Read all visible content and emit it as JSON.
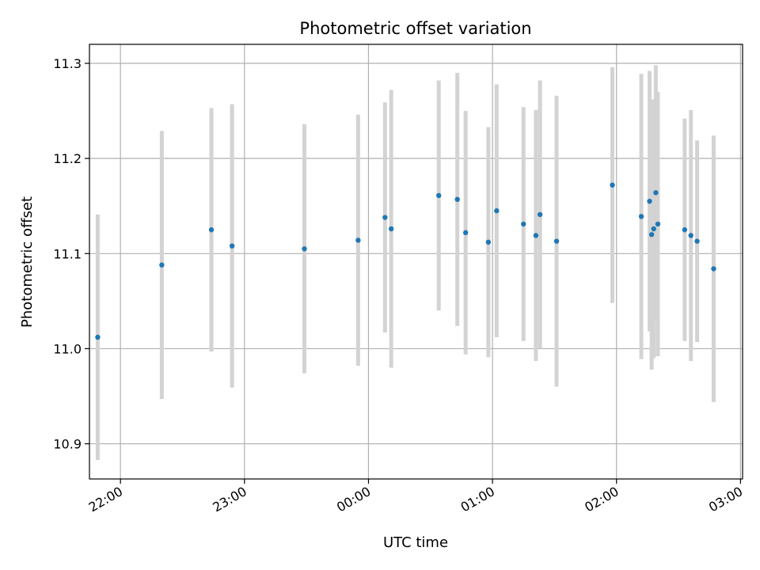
{
  "chart_data": {
    "type": "scatter",
    "title": "Photometric offset variation",
    "xlabel": "UTC time",
    "ylabel": "Photometric offset",
    "x_ticks": [
      "22:00",
      "23:00",
      "00:00",
      "01:00",
      "02:00",
      "03:00"
    ],
    "y_ticks": [
      "10.9",
      "11.0",
      "11.1",
      "11.2",
      "11.3"
    ],
    "xlim": [
      "21:45",
      "03:01"
    ],
    "ylim": [
      10.863,
      11.32
    ],
    "grid": true,
    "colors": {
      "point": "#1f77b4",
      "errorbar": "#d3d3d3",
      "grid": "#b0b0b0"
    },
    "series": [
      {
        "points": [
          {
            "x": "21:49",
            "y": 11.012,
            "yerr": 0.129
          },
          {
            "x": "22:20",
            "y": 11.088,
            "yerr": 0.141
          },
          {
            "x": "22:44",
            "y": 11.125,
            "yerr": 0.128
          },
          {
            "x": "22:54",
            "y": 11.108,
            "yerr": 0.149
          },
          {
            "x": "23:29",
            "y": 11.105,
            "yerr": 0.131
          },
          {
            "x": "23:55",
            "y": 11.114,
            "yerr": 0.132
          },
          {
            "x": "00:08",
            "y": 11.138,
            "yerr": 0.121
          },
          {
            "x": "00:11",
            "y": 11.126,
            "yerr": 0.146
          },
          {
            "x": "00:34",
            "y": 11.161,
            "yerr": 0.121
          },
          {
            "x": "00:43",
            "y": 11.157,
            "yerr": 0.133
          },
          {
            "x": "00:47",
            "y": 11.122,
            "yerr": 0.128
          },
          {
            "x": "00:58",
            "y": 11.112,
            "yerr": 0.121
          },
          {
            "x": "01:02",
            "y": 11.145,
            "yerr": 0.133
          },
          {
            "x": "01:15",
            "y": 11.131,
            "yerr": 0.123
          },
          {
            "x": "01:21",
            "y": 11.119,
            "yerr": 0.132
          },
          {
            "x": "01:23",
            "y": 11.141,
            "yerr": 0.141
          },
          {
            "x": "01:31",
            "y": 11.113,
            "yerr": 0.153
          },
          {
            "x": "01:58",
            "y": 11.172,
            "yerr": 0.124
          },
          {
            "x": "02:12",
            "y": 11.139,
            "yerr": 0.15
          },
          {
            "x": "02:16",
            "y": 11.155,
            "yerr": 0.137
          },
          {
            "x": "02:17",
            "y": 11.12,
            "yerr": 0.142
          },
          {
            "x": "02:18",
            "y": 11.126,
            "yerr": 0.136
          },
          {
            "x": "02:19",
            "y": 11.164,
            "yerr": 0.134
          },
          {
            "x": "02:20",
            "y": 11.131,
            "yerr": 0.139
          },
          {
            "x": "02:33",
            "y": 11.125,
            "yerr": 0.117
          },
          {
            "x": "02:36",
            "y": 11.119,
            "yerr": 0.132
          },
          {
            "x": "02:39",
            "y": 11.113,
            "yerr": 0.106
          },
          {
            "x": "02:47",
            "y": 11.084,
            "yerr": 0.14
          }
        ]
      }
    ]
  }
}
